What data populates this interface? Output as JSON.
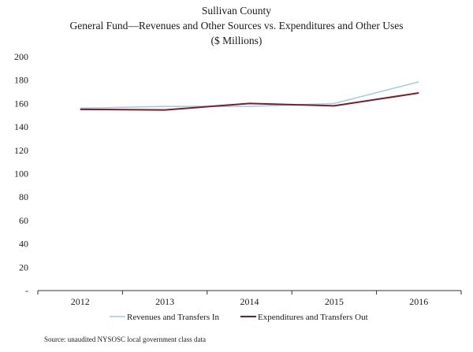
{
  "chart_data": {
    "type": "line",
    "title_lines": [
      "Sullivan County",
      "General Fund—Revenues and Other Sources vs. Expenditures and Other Uses",
      "($ Millions)"
    ],
    "categories": [
      "2012",
      "2013",
      "2014",
      "2015",
      "2016"
    ],
    "y_tick_labels": [
      "-",
      "20",
      "40",
      "60",
      "80",
      "100",
      "120",
      "140",
      "160",
      "180",
      "200"
    ],
    "ylim": [
      0,
      200
    ],
    "series": [
      {
        "name": "Revenues and Transfers In",
        "color": "#9dcbe3",
        "values": [
          156,
          157.5,
          157.5,
          160,
          178.5
        ]
      },
      {
        "name": "Expenditures and Transfers Out",
        "color": "#7b1c2a",
        "values": [
          155,
          154.5,
          160,
          158,
          169
        ]
      }
    ],
    "legend_position": "bottom",
    "source": "Source: unaudited NYSOSC local government class data"
  }
}
